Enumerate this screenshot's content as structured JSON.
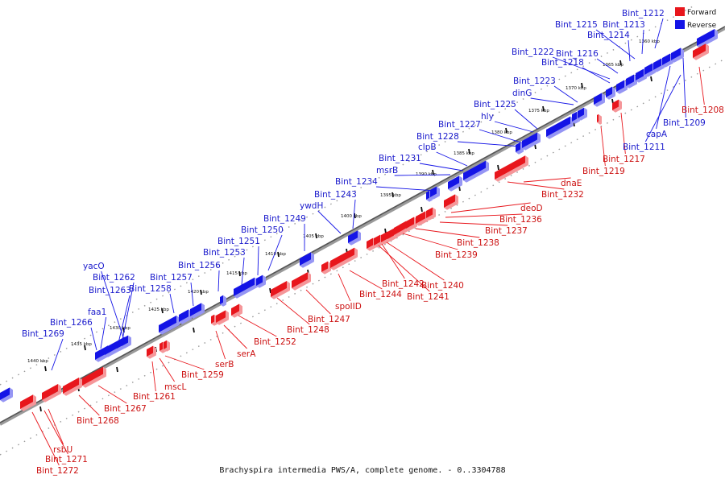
{
  "caption": "Brachyspira intermedia PWS/A, complete genome. - 0..3304788",
  "legend": [
    {
      "label": "Forward",
      "color": "#e8161c"
    },
    {
      "label": "Reverse",
      "color": "#1414e6"
    }
  ],
  "colors": {
    "forward": "#e8161c",
    "reverse": "#1414e6",
    "forward_text": "#cc1111",
    "reverse_text": "#1a1acc",
    "backbone": "#777777"
  },
  "ticks": [
    "1360 kbp",
    "1365 kbp",
    "1370 kbp",
    "1375 kbp",
    "1380 kbp",
    "1385 kbp",
    "1390 kbp",
    "1395 kbp",
    "1400 kbp",
    "1405 kbp",
    "1410 kbp",
    "1415 kbp",
    "1420 kbp",
    "1425 kbp",
    "1430 kbp",
    "1435 kbp",
    "1440 kbp"
  ],
  "reverse_labels": [
    "Bint_1212",
    "Bint_1213",
    "Bint_1215",
    "Bint_1214",
    "Bint_1222",
    "Bint_1216",
    "Bint_1218",
    "Bint_1223",
    "dinG",
    "Bint_1225",
    "hly",
    "Bint_1227",
    "Bint_1228",
    "clpB",
    "Bint_1231",
    "msrB",
    "Bint_1234",
    "Bint_1243",
    "ywdH",
    "Bint_1249",
    "Bint_1250",
    "Bint_1251",
    "Bint_1253",
    "Bint_1256",
    "yacO",
    "Bint_1262",
    "Bint_1257",
    "Bint_1263",
    "Bint_1258",
    "faa1",
    "Bint_1266",
    "Bint_1269",
    "capA",
    "Bint_1209",
    "Bint_1211"
  ],
  "forward_labels": [
    "Bint_1208",
    "Bint_1217",
    "Bint_1219",
    "dnaE",
    "Bint_1232",
    "deoD",
    "Bint_1236",
    "Bint_1237",
    "Bint_1238",
    "Bint_1239",
    "Bint_1240",
    "Bint_1242",
    "Bint_1241",
    "Bint_1244",
    "spoIID",
    "Bint_1247",
    "Bint_1248",
    "Bint_1252",
    "serA",
    "serB",
    "Bint_1259",
    "mscL",
    "Bint_1261",
    "Bint_1267",
    "Bint_1268",
    "rsbU",
    "Bint_1271",
    "Bint_1272"
  ]
}
